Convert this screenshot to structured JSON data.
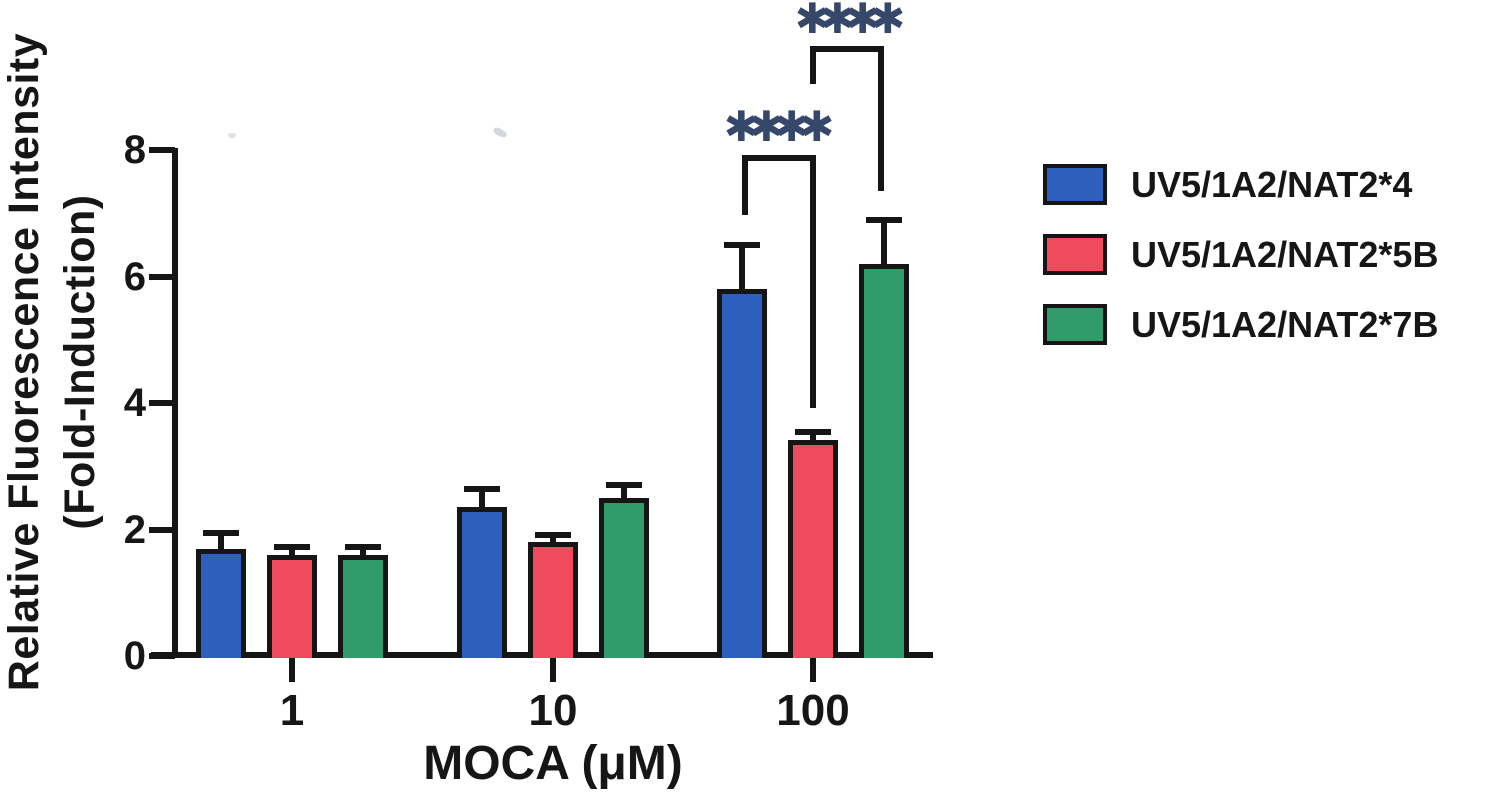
{
  "chart_data": {
    "type": "bar",
    "title": "",
    "xlabel": "MOCA (μM)",
    "ylabel_line1": "Relative Fluorescence Intensity",
    "ylabel_line2": "(Fold-Induction)",
    "categories": [
      "1",
      "10",
      "100"
    ],
    "yticks": [
      "0",
      "2",
      "4",
      "6",
      "8"
    ],
    "ylim": [
      0,
      8
    ],
    "grid": false,
    "legend_position": "right",
    "bar_outline_color": "#151515",
    "series": [
      {
        "name": "UV5/1A2/NAT2*4",
        "color": "#2d5fbe",
        "values": [
          1.7,
          2.35,
          5.8
        ],
        "errors": [
          0.24,
          0.3,
          0.7
        ]
      },
      {
        "name": "UV5/1A2/NAT2*5B",
        "color": "#ef4a5e",
        "values": [
          1.6,
          1.8,
          3.42
        ],
        "errors": [
          0.12,
          0.12,
          0.12
        ]
      },
      {
        "name": "UV5/1A2/NAT2*7B",
        "color": "#2f9b68",
        "values": [
          1.6,
          2.5,
          6.2
        ],
        "errors": [
          0.12,
          0.2,
          0.7
        ]
      }
    ],
    "annotations": [
      {
        "text": "****",
        "comparison": "UV5/1A2/NAT2*4 vs UV5/1A2/NAT2*5B",
        "category": "100",
        "color": "#35486a"
      },
      {
        "text": "****",
        "comparison": "UV5/1A2/NAT2*5B vs UV5/1A2/NAT2*7B",
        "category": "100",
        "color": "#35486a"
      }
    ]
  }
}
